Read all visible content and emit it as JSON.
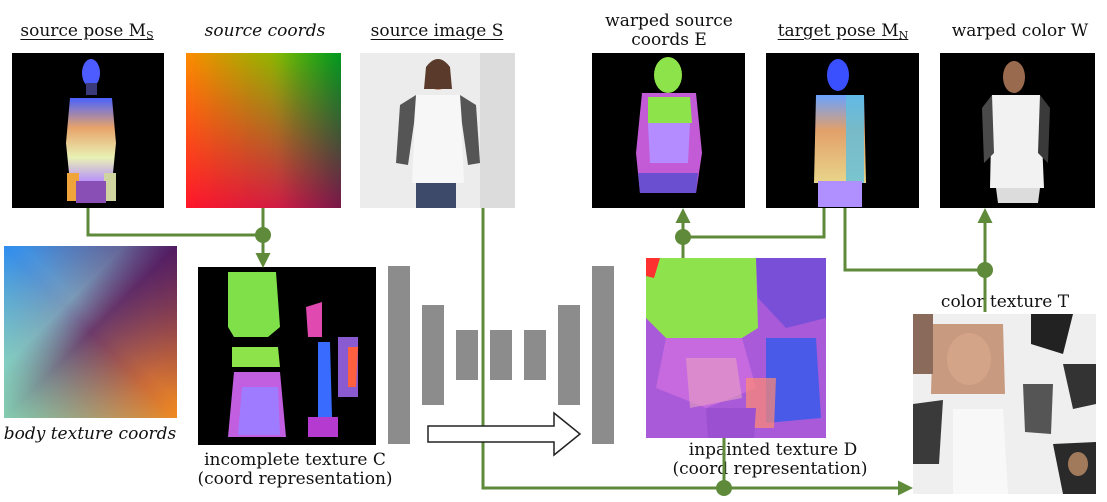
{
  "labels": {
    "source_pose": "source pose M",
    "source_pose_sub": "S",
    "source_coords": "source coords",
    "source_image": "source image S",
    "warped_source_coords_l1": "warped source",
    "warped_source_coords_l2": "coords E",
    "target_pose": "target pose M",
    "target_pose_sub": "N",
    "warped_color": "warped color W",
    "body_texture_coords": "body texture coords",
    "incomplete_texture_l1": "incomplete texture C",
    "incomplete_texture_l2": "(coord representation)",
    "inpainted_texture_l1": "inpainted texture D",
    "inpainted_texture_l2": "(coord   representation)",
    "color_texture": "color texture T"
  },
  "colors": {
    "connector": "#5f8a3a",
    "network_block": "#8c8c8c",
    "background": "#000000"
  }
}
